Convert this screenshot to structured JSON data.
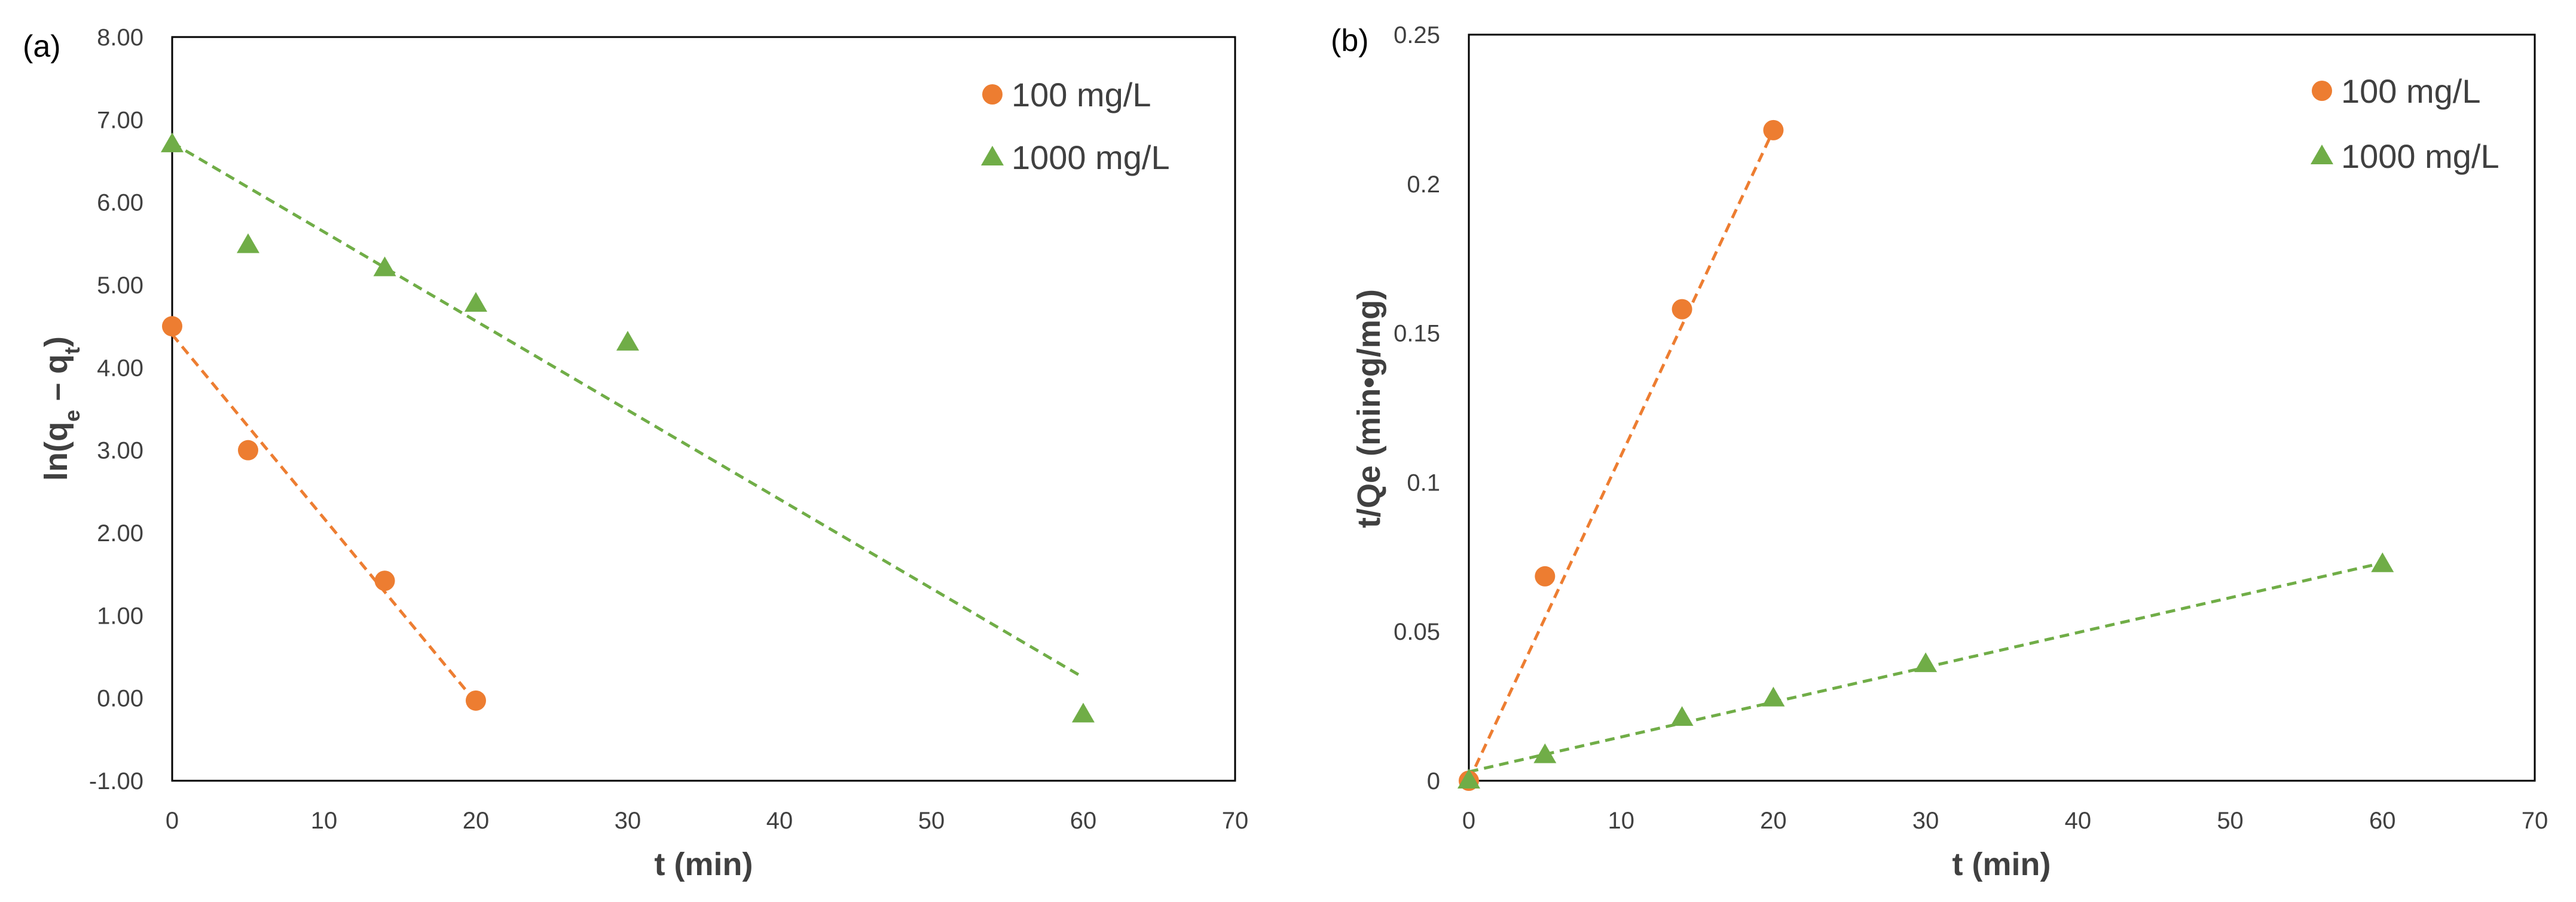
{
  "colors": {
    "orange": "#ED7D31",
    "green": "#70AD47",
    "axis": "#404040",
    "frame": "#000000"
  },
  "chart_data": [
    {
      "type": "scatter",
      "panel_label": "(a)",
      "xlabel": "t (min)",
      "ylabel": "ln(q",
      "ylabel_sub1": "e",
      "ylabel_mid": " – q",
      "ylabel_sub2": "t",
      "ylabel_end": ")",
      "xlim": [
        0,
        70
      ],
      "ylim": [
        -1,
        8
      ],
      "x_ticks": [
        0,
        10,
        20,
        30,
        40,
        50,
        60,
        70
      ],
      "x_tick_labels": [
        "0",
        "10",
        "20",
        "30",
        "40",
        "50",
        "60",
        "70"
      ],
      "y_ticks": [
        -1,
        0,
        1,
        2,
        3,
        4,
        5,
        6,
        7,
        8
      ],
      "y_tick_labels": [
        "-1.00",
        "0.00",
        "1.00",
        "2.00",
        "3.00",
        "4.00",
        "5.00",
        "6.00",
        "7.00",
        "8.00"
      ],
      "legend_position": "top-right",
      "series": [
        {
          "name": "100 mg/L",
          "marker": "circle",
          "color": "#ED7D31",
          "x": [
            0,
            5,
            14,
            20
          ],
          "y": [
            4.5,
            3.0,
            1.42,
            -0.03
          ],
          "trendline": {
            "x": [
              0,
              20
            ],
            "y": [
              4.4,
              -0.05
            ]
          }
        },
        {
          "name": "1000 mg/L",
          "marker": "triangle",
          "color": "#70AD47",
          "x": [
            0,
            5,
            14,
            20,
            30,
            60
          ],
          "y": [
            6.7,
            5.48,
            5.2,
            4.77,
            4.3,
            -0.2
          ],
          "trendline": {
            "x": [
              0,
              60
            ],
            "y": [
              6.72,
              0.25
            ]
          }
        }
      ]
    },
    {
      "type": "scatter",
      "panel_label": "(b)",
      "xlabel": "t (min)",
      "ylabel": "t/Qe (min•g/mg)",
      "xlim": [
        0,
        70
      ],
      "ylim": [
        0,
        0.25
      ],
      "x_ticks": [
        0,
        10,
        20,
        30,
        40,
        50,
        60,
        70
      ],
      "x_tick_labels": [
        "0",
        "10",
        "20",
        "30",
        "40",
        "50",
        "60",
        "70"
      ],
      "y_ticks": [
        0,
        0.05,
        0.1,
        0.15,
        0.2,
        0.25
      ],
      "y_tick_labels": [
        "0",
        "0.05",
        "0.1",
        "0.15",
        "0.2",
        "0.25"
      ],
      "legend_position": "top-right",
      "series": [
        {
          "name": "100 mg/L",
          "marker": "circle",
          "color": "#ED7D31",
          "x": [
            0,
            5,
            14,
            20
          ],
          "y": [
            0.0,
            0.0685,
            0.158,
            0.218
          ],
          "trendline": {
            "x": [
              0,
              20
            ],
            "y": [
              0.0,
              0.218
            ]
          }
        },
        {
          "name": "1000 mg/L",
          "marker": "triangle",
          "color": "#70AD47",
          "x": [
            0,
            5,
            14,
            20,
            30,
            60
          ],
          "y": [
            0.0,
            0.0085,
            0.021,
            0.0275,
            0.039,
            0.0725
          ],
          "trendline": {
            "x": [
              0,
              60
            ],
            "y": [
              0.003,
              0.073
            ]
          }
        }
      ]
    }
  ]
}
